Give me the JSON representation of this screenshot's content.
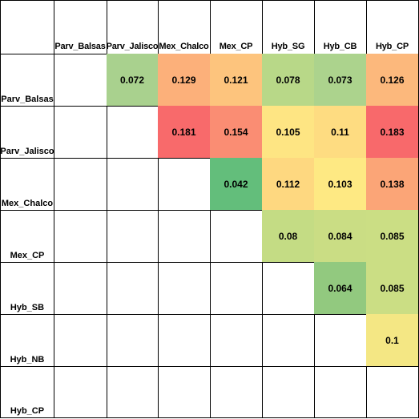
{
  "chart_data": {
    "type": "heatmap",
    "title": "",
    "column_labels": [
      "Parv_Balsas",
      "Parv_Jalisco",
      "Mex_Chalco",
      "Mex_CP",
      "Hyb_SG",
      "Hyb_CB",
      "Hyb_CP"
    ],
    "row_labels": [
      "Parv_Balsas",
      "Parv_Jalisco",
      "Mex_Chalco",
      "Mex_CP",
      "Hyb_SB",
      "Hyb_NB",
      "Hyb_CP"
    ],
    "cells": [
      {
        "row": 0,
        "col": 1,
        "value": "0.072",
        "color": "#a9d18e"
      },
      {
        "row": 0,
        "col": 2,
        "value": "0.129",
        "color": "#fcb07a"
      },
      {
        "row": 0,
        "col": 3,
        "value": "0.121",
        "color": "#fdc47d"
      },
      {
        "row": 0,
        "col": 4,
        "value": "0.078",
        "color": "#b8d888"
      },
      {
        "row": 0,
        "col": 5,
        "value": "0.073",
        "color": "#acd38d"
      },
      {
        "row": 0,
        "col": 6,
        "value": "0.126",
        "color": "#fcb87c"
      },
      {
        "row": 1,
        "col": 2,
        "value": "0.181",
        "color": "#f86a6b"
      },
      {
        "row": 1,
        "col": 3,
        "value": "0.154",
        "color": "#fa8d73"
      },
      {
        "row": 1,
        "col": 4,
        "value": "0.105",
        "color": "#fee583"
      },
      {
        "row": 1,
        "col": 5,
        "value": "0.11",
        "color": "#fedc81"
      },
      {
        "row": 1,
        "col": 6,
        "value": "0.183",
        "color": "#f8696b"
      },
      {
        "row": 2,
        "col": 3,
        "value": "0.042",
        "color": "#63be7b"
      },
      {
        "row": 2,
        "col": 4,
        "value": "0.112",
        "color": "#fed880"
      },
      {
        "row": 2,
        "col": 5,
        "value": "0.103",
        "color": "#fee983"
      },
      {
        "row": 2,
        "col": 6,
        "value": "0.138",
        "color": "#fba577"
      },
      {
        "row": 3,
        "col": 4,
        "value": "0.08",
        "color": "#c4dc84"
      },
      {
        "row": 3,
        "col": 5,
        "value": "0.084",
        "color": "#cadd84"
      },
      {
        "row": 3,
        "col": 6,
        "value": "0.085",
        "color": "#cbde84"
      },
      {
        "row": 4,
        "col": 5,
        "value": "0.064",
        "color": "#92c97f"
      },
      {
        "row": 4,
        "col": 6,
        "value": "0.085",
        "color": "#cbde84"
      },
      {
        "row": 5,
        "col": 6,
        "value": "0.1",
        "color": "#f4e784"
      }
    ]
  }
}
